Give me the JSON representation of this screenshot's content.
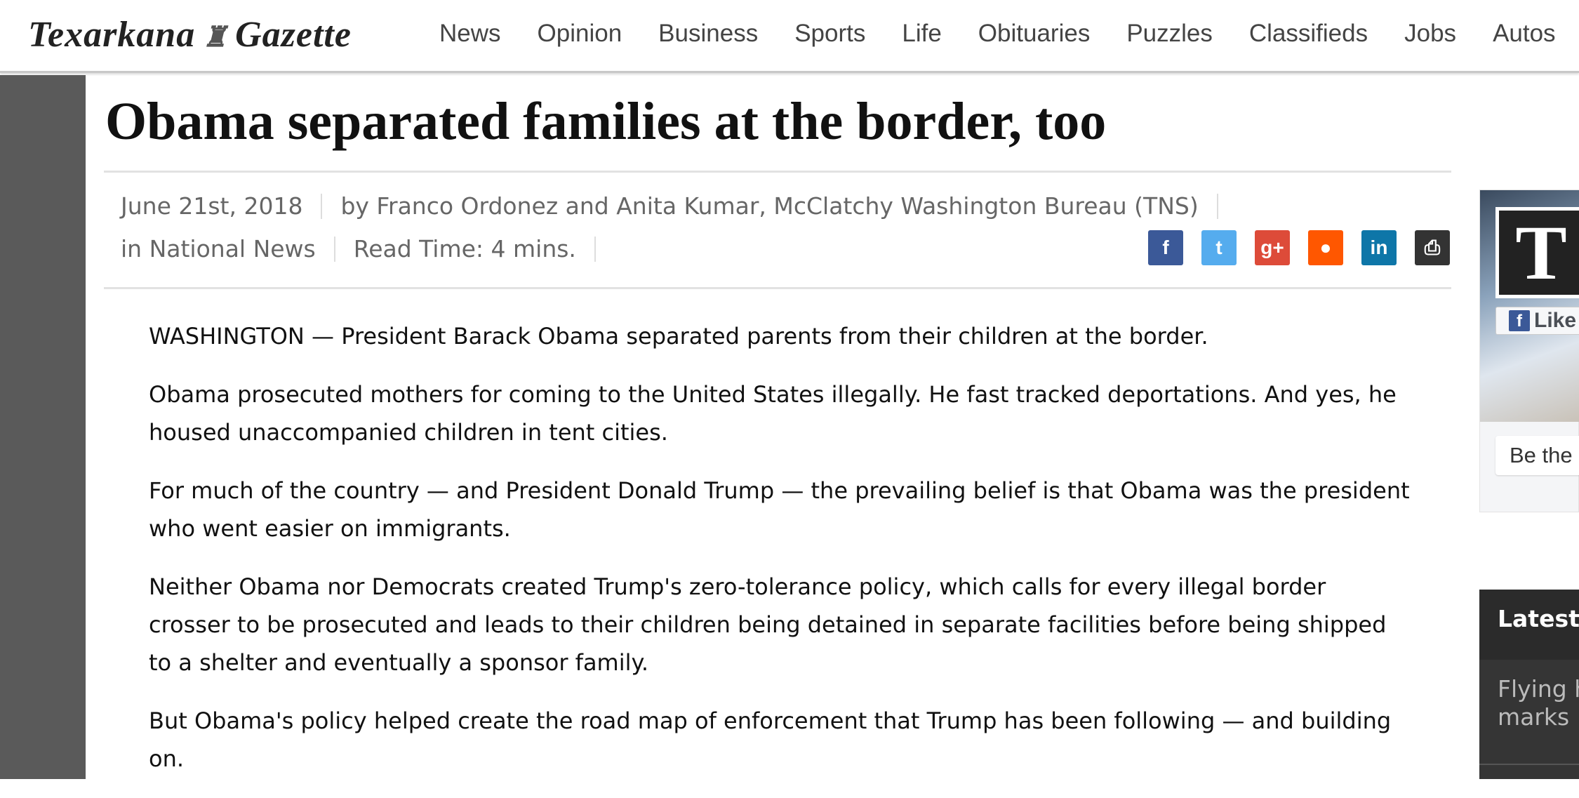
{
  "header": {
    "logo": "Texarkana Gazette",
    "nav": [
      "News",
      "Opinion",
      "Business",
      "Sports",
      "Life",
      "Obituaries",
      "Puzzles",
      "Classifieds",
      "Jobs",
      "Autos"
    ]
  },
  "article": {
    "title": "Obama separated families at the border, too",
    "date": "June 21st, 2018",
    "byline": "by Franco Ordonez and Anita Kumar, McClatchy Washington Bureau (TNS)",
    "category": "in National News",
    "read_time": "Read Time: 4 mins.",
    "paragraphs": [
      "WASHINGTON — President Barack Obama separated parents from their children at the border.",
      "Obama prosecuted mothers for coming to the United States illegally. He fast tracked deportations. And yes, he housed unaccompanied children in tent cities.",
      "For much of the country — and President Donald Trump — the prevailing belief is that Obama was the president who went easier on immigrants.",
      "Neither Obama nor Democrats created Trump's zero-tolerance policy, which calls for every illegal border crosser to be prosecuted and leads to their children being detained in separate facilities before being shipped to a shelter and eventually a sponsor family.",
      "But Obama's policy helped create the road map of enforcement that Trump has been following — and building on."
    ]
  },
  "social": [
    {
      "icon": "facebook-icon",
      "glyph": "f",
      "color": "#3b5998"
    },
    {
      "icon": "twitter-icon",
      "glyph": "t",
      "color": "#55acee"
    },
    {
      "icon": "google-plus-icon",
      "glyph": "g+",
      "color": "#dd4b39"
    },
    {
      "icon": "reddit-icon",
      "glyph": "●",
      "color": "#ff5700"
    },
    {
      "icon": "linkedin-icon",
      "glyph": "in",
      "color": "#0e76a8"
    },
    {
      "icon": "print-icon",
      "glyph": "⎙",
      "color": "#333333"
    }
  ],
  "sidebar": {
    "fb_logo": "T",
    "like": "Like",
    "be_the": "Be the",
    "latest_title": "Latest",
    "latest_item": "Flying h\nmarks :"
  }
}
